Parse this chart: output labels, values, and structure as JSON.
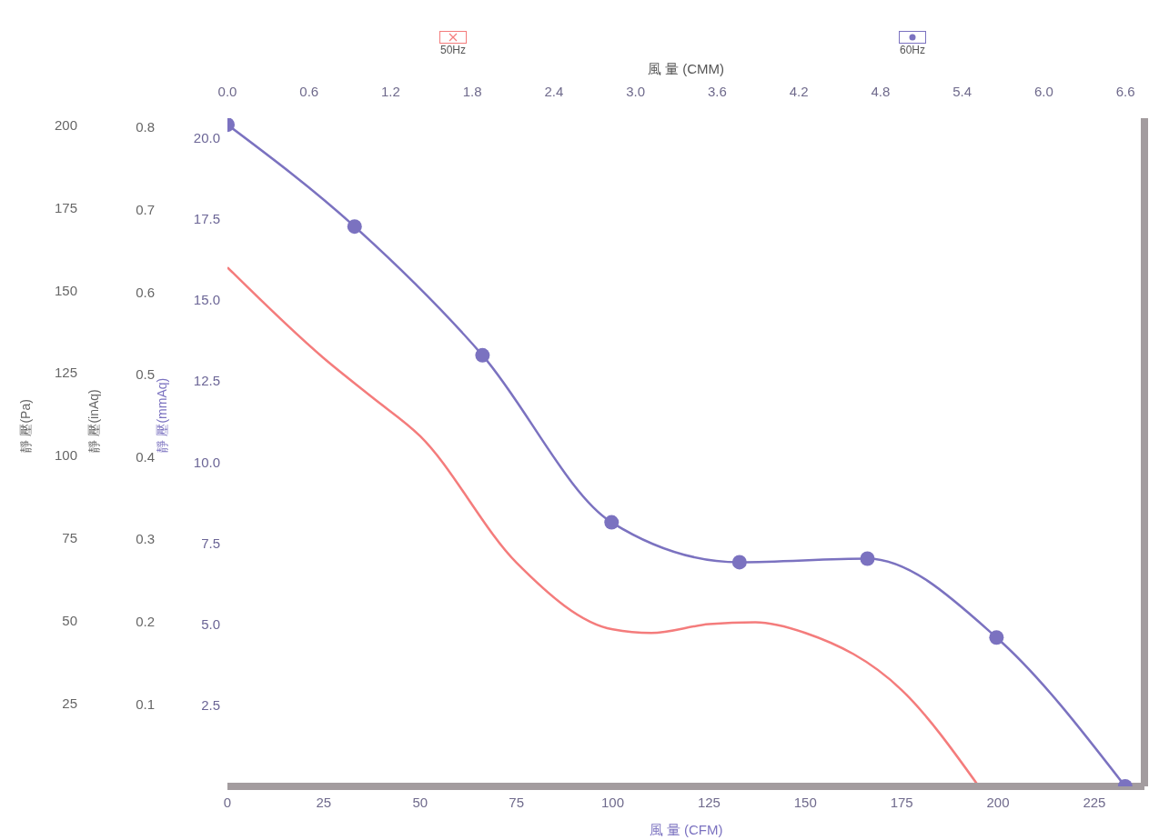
{
  "chart_data": {
    "type": "line",
    "xlabel": "風 量 (CFM)",
    "ylabel": "靜 壓(mmAq)",
    "y2label": "靜 壓(Pa)",
    "y3label": "靜 壓(inAq)",
    "x2label": "風 量 (CMM)",
    "series": [
      {
        "name": "50Hz",
        "color": "#f47c7c",
        "marker": "none",
        "x": [
          0,
          25,
          37.5,
          50,
          75,
          100,
          110,
          125,
          137,
          150,
          175,
          195
        ],
        "values": [
          16.0,
          13.2,
          12.0,
          10.8,
          6.9,
          4.84,
          4.73,
          5.0,
          5.06,
          4.73,
          2.97,
          0
        ]
      },
      {
        "name": "60Hz",
        "color": "#7b72c0",
        "marker": "circle",
        "x": [
          0,
          33,
          66.2,
          99.7,
          132.9,
          166.1,
          199.6,
          233
        ],
        "values": [
          20.4,
          17.26,
          13.29,
          8.14,
          6.91,
          7.02,
          4.59,
          0
        ]
      }
    ],
    "xlim": [
      0,
      238
    ],
    "xticks": [
      0,
      25,
      50,
      75,
      100,
      125,
      150,
      175,
      200,
      225
    ],
    "x2lim": [
      0,
      6.74
    ],
    "x2ticks": [
      {
        "value": 0,
        "label": "0.0"
      },
      0.6,
      1.2,
      1.8,
      2.4,
      {
        "value": 3,
        "label": "3.0"
      },
      3.6,
      4.2,
      4.8,
      5.4,
      {
        "value": 6,
        "label": "6.0"
      },
      6.6
    ],
    "ylim": [
      0,
      20.6
    ],
    "yticks": [
      2.5,
      {
        "value": 5,
        "label": "5.0"
      },
      7.5,
      {
        "value": 10,
        "label": "10.0"
      },
      12.5,
      {
        "value": 15,
        "label": "15.0"
      },
      17.5,
      {
        "value": 20,
        "label": "20.0"
      }
    ],
    "y2lim": [
      0,
      202
    ],
    "y2ticks": [
      25,
      50,
      75,
      100,
      125,
      150,
      175,
      200
    ],
    "y3lim": [
      0,
      0.811
    ],
    "y3ticks": [
      0.1,
      0.2,
      0.3,
      0.4,
      0.5,
      0.6,
      0.7,
      0.8
    ],
    "grid": false,
    "legend": "top",
    "line_style": "solid"
  }
}
